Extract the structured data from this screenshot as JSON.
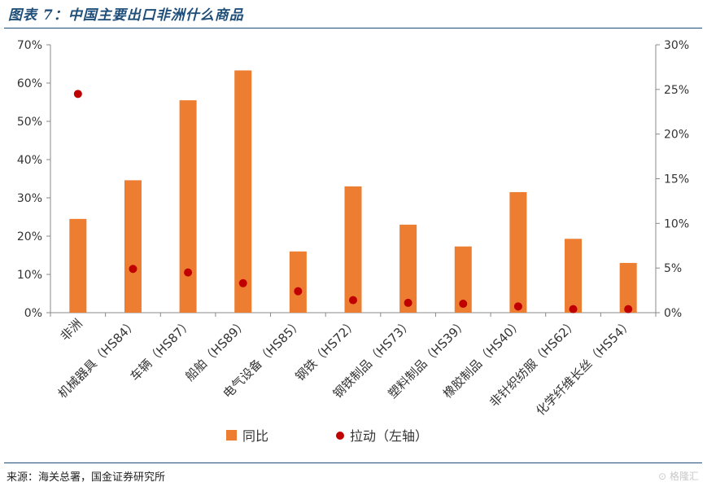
{
  "figure": {
    "title": "图表 7：中国主要出口非洲什么商品",
    "source": "来源：海关总署，国金证券研究所",
    "watermark": "格隆汇"
  },
  "chart_data": {
    "type": "bar",
    "categories": [
      "非洲",
      "机械器具（HS84）",
      "车辆（HS87）",
      "船舶（HS89）",
      "电气设备（HS85）",
      "钢铁（HS72）",
      "钢铁制品（HS73）",
      "塑料制品（HS39）",
      "橡胶制品（HS40）",
      "非针织纺服（HS62）",
      "化学纤维长丝（HS54）"
    ],
    "series": [
      {
        "name": "同比",
        "type": "bar",
        "axis": "left",
        "color": "#ed7d31",
        "values": [
          24.5,
          34.6,
          55.5,
          63.3,
          16.0,
          33.0,
          23.0,
          17.3,
          31.5,
          19.3,
          13.0
        ]
      },
      {
        "name": "拉动（左轴）",
        "type": "scatter",
        "axis": "right",
        "color": "#c00000",
        "values": [
          24.5,
          4.9,
          4.5,
          3.3,
          2.4,
          1.4,
          1.1,
          1.0,
          0.7,
          0.4,
          0.4
        ]
      }
    ],
    "y_left": {
      "min": 0,
      "max": 70,
      "ticks": [
        "0%",
        "10%",
        "20%",
        "30%",
        "40%",
        "50%",
        "60%",
        "70%"
      ]
    },
    "y_right": {
      "min": 0,
      "max": 30,
      "ticks": [
        "0%",
        "5%",
        "10%",
        "15%",
        "20%",
        "25%",
        "30%"
      ]
    },
    "legend_position": "bottom",
    "grid": false
  }
}
